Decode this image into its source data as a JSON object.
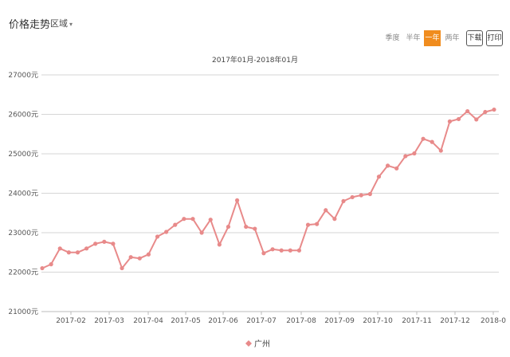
{
  "header": {
    "title": "价格走势",
    "region_label": "区域",
    "region_caret": "▾"
  },
  "range_buttons": {
    "quarter": "季度",
    "half_year": "半年",
    "one_year": "一年",
    "two_years": "两年",
    "active": "one_year"
  },
  "tools": {
    "download": "下载",
    "print": "打印"
  },
  "chart_data": {
    "type": "line",
    "title": "2017年01月-2018年01月",
    "xlabel": "",
    "ylabel": "",
    "ylim": [
      21000,
      27000
    ],
    "yticks": [
      21000,
      22000,
      23000,
      24000,
      25000,
      26000,
      27000
    ],
    "y_tick_labels": [
      "21000元",
      "22000元",
      "23000元",
      "24000元",
      "25000元",
      "26000元",
      "27000元"
    ],
    "y_unit": "元",
    "x_tick_labels": [
      "2017-02",
      "2017-03",
      "2017-04",
      "2017-05",
      "2017-06",
      "2017-07",
      "2017-08",
      "2017-09",
      "2017-10",
      "2017-11",
      "2017-12",
      "2018-0"
    ],
    "grid": true,
    "legend_position": "bottom",
    "series": [
      {
        "name": "广州",
        "color": "#e88a8a",
        "values": [
          22100,
          22200,
          22600,
          22500,
          22500,
          22600,
          22720,
          22770,
          22720,
          22100,
          22380,
          22350,
          22450,
          22900,
          23020,
          23200,
          23350,
          23350,
          23000,
          23330,
          22700,
          23150,
          23820,
          23150,
          23100,
          22480,
          22580,
          22550,
          22550,
          22550,
          23200,
          23220,
          23570,
          23350,
          23800,
          23900,
          23950,
          23980,
          24420,
          24700,
          24630,
          24940,
          25010,
          25380,
          25300,
          25080,
          25820,
          25880,
          26080,
          25870,
          26060,
          26120
        ]
      }
    ]
  }
}
